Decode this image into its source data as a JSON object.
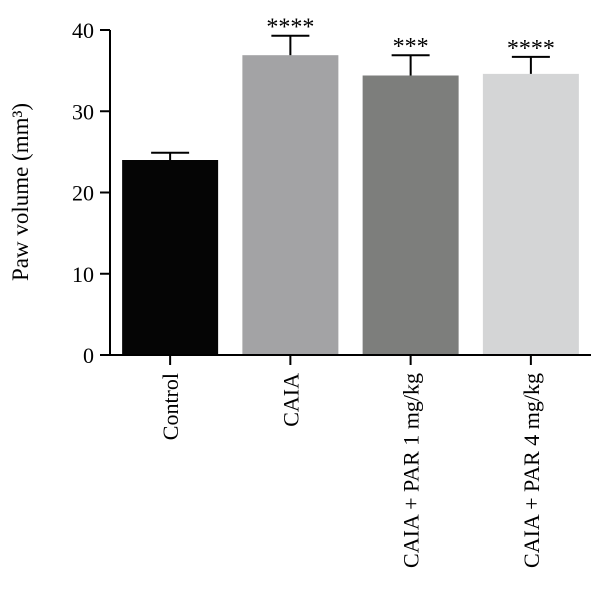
{
  "chart_data": {
    "type": "bar",
    "title": "",
    "xlabel": "",
    "ylabel": "Paw volume (mm³)",
    "ylim": [
      0,
      40
    ],
    "yticks": [
      0,
      10,
      20,
      30,
      40
    ],
    "grid": false,
    "categories": [
      "Control",
      "CAIA",
      "CAIA + PAR 1 mg/kg",
      "CAIA + PAR 4 mg/kg"
    ],
    "values": [
      24.0,
      36.9,
      34.4,
      34.6
    ],
    "errors": [
      0.9,
      2.4,
      2.5,
      2.1
    ],
    "significance": [
      "",
      "****",
      "***",
      "****"
    ],
    "colors": [
      "#050505",
      "#a3a3a5",
      "#7d7e7c",
      "#d4d5d6"
    ]
  }
}
